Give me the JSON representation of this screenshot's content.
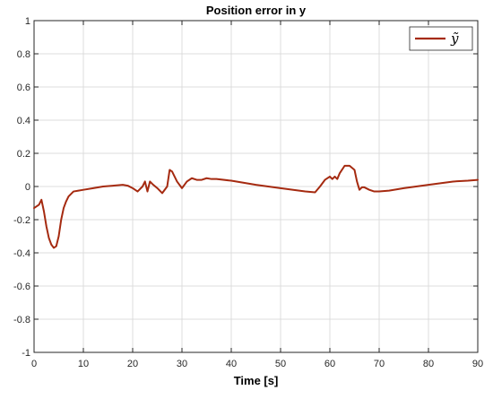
{
  "chart_data": {
    "type": "line",
    "title": "Position error in y",
    "xlabel": "Time [s]",
    "ylabel": "",
    "xlim": [
      0,
      90
    ],
    "ylim": [
      -1,
      1
    ],
    "x_ticks": [
      0,
      10,
      20,
      30,
      40,
      50,
      60,
      70,
      80,
      90
    ],
    "x_tick_labels": [
      "0",
      "10",
      "20",
      "30",
      "40",
      "50",
      "60",
      "70",
      "80",
      "90"
    ],
    "y_ticks": [
      -1,
      -0.8,
      -0.6,
      -0.4,
      -0.2,
      0,
      0.2,
      0.4,
      0.6,
      0.8,
      1
    ],
    "y_tick_labels": [
      "-1",
      "-0.8",
      "-0.6",
      "-0.4",
      "-0.2",
      "0",
      "0.2",
      "0.4",
      "0.6",
      "0.8",
      "1"
    ],
    "grid": true,
    "legend_position": "top-right",
    "series": [
      {
        "name": "ỹ",
        "color": "#a52a10",
        "x": [
          0,
          0.5,
          1,
          1.5,
          2,
          2.5,
          3,
          3.5,
          4,
          4.5,
          5,
          5.5,
          6,
          6.5,
          7,
          8,
          9,
          10,
          12,
          14,
          16,
          18,
          19,
          20,
          21,
          22,
          22.5,
          23,
          23.5,
          24,
          25,
          26,
          27,
          27.5,
          28,
          29,
          30,
          31,
          32,
          33,
          34,
          35,
          36,
          37,
          40,
          45,
          50,
          55,
          57,
          58,
          59,
          60,
          60.5,
          61,
          61.5,
          62,
          63,
          64,
          65,
          65.5,
          66,
          66.5,
          67,
          68,
          69,
          70,
          72,
          75,
          80,
          85,
          88,
          90
        ],
        "y": [
          -0.13,
          -0.12,
          -0.11,
          -0.08,
          -0.15,
          -0.24,
          -0.31,
          -0.35,
          -0.37,
          -0.36,
          -0.3,
          -0.2,
          -0.13,
          -0.09,
          -0.06,
          -0.03,
          -0.025,
          -0.02,
          -0.01,
          0.0,
          0.005,
          0.01,
          0.005,
          -0.01,
          -0.03,
          0.0,
          0.03,
          -0.03,
          0.03,
          0.015,
          -0.01,
          -0.04,
          0.0,
          0.1,
          0.09,
          0.03,
          -0.01,
          0.03,
          0.05,
          0.04,
          0.04,
          0.05,
          0.045,
          0.045,
          0.035,
          0.01,
          -0.01,
          -0.03,
          -0.035,
          0.0,
          0.04,
          0.06,
          0.045,
          0.06,
          0.045,
          0.08,
          0.125,
          0.125,
          0.1,
          0.03,
          -0.02,
          -0.005,
          -0.005,
          -0.02,
          -0.03,
          -0.03,
          -0.025,
          -0.01,
          0.01,
          0.03,
          0.035,
          0.04
        ]
      }
    ]
  }
}
